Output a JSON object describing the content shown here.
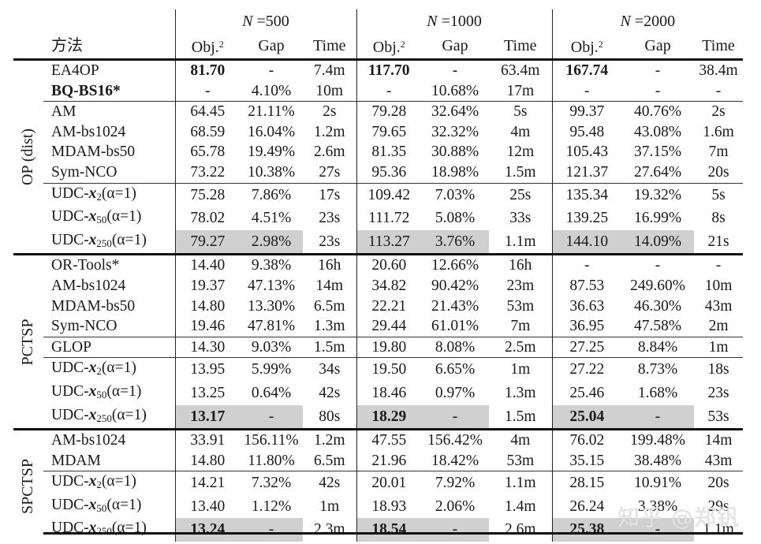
{
  "header": {
    "method_label": "方法",
    "groups": [
      {
        "label_var": "N",
        "label_eq": " =500"
      },
      {
        "label_var": "N",
        "label_eq": " =1000"
      },
      {
        "label_var": "N",
        "label_eq": " =2000"
      }
    ],
    "columns": {
      "obj": "Obj.",
      "obj_sup": "2",
      "gap": "Gap",
      "time": "Time"
    }
  },
  "sections": [
    {
      "category": "OP (dist)",
      "rows": [
        {
          "method": "EA4OP",
          "values": [
            "81.70",
            "-",
            "7.4m",
            "117.70",
            "-",
            "63.4m",
            "167.74",
            "-",
            "38.4m"
          ],
          "bold": [
            0,
            3,
            6
          ]
        },
        {
          "method": "BQ-BS16*",
          "values": [
            "-",
            "4.10%",
            "10m",
            "-",
            "10.68%",
            "17m",
            "-",
            "-",
            "-"
          ]
        },
        {
          "method": "AM",
          "values": [
            "64.45",
            "21.11%",
            "2s",
            "79.28",
            "32.64%",
            "5s",
            "99.37",
            "40.76%",
            "2s"
          ]
        },
        {
          "method": "AM-bs1024",
          "values": [
            "68.59",
            "16.04%",
            "1.2m",
            "79.65",
            "32.32%",
            "4m",
            "95.48",
            "43.08%",
            "1.6m"
          ]
        },
        {
          "method": "MDAM-bs50",
          "values": [
            "65.78",
            "19.49%",
            "2.6m",
            "81.35",
            "30.88%",
            "12m",
            "105.43",
            "37.15%",
            "7m"
          ]
        },
        {
          "method": "Sym-NCO",
          "values": [
            "73.22",
            "10.38%",
            "27s",
            "95.36",
            "18.98%",
            "1.5m",
            "121.37",
            "27.64%",
            "20s"
          ]
        },
        {
          "method_prefix": "UDC-",
          "method_var": "x",
          "method_sub": "2",
          "method_suffix": "(α=1)",
          "values": [
            "75.28",
            "7.86%",
            "17s",
            "109.42",
            "7.03%",
            "25s",
            "135.34",
            "19.32%",
            "5s"
          ]
        },
        {
          "method_prefix": "UDC-",
          "method_var": "x",
          "method_sub": "50",
          "method_suffix": "(α=1)",
          "values": [
            "78.02",
            "4.51%",
            "23s",
            "111.72",
            "5.08%",
            "33s",
            "139.25",
            "16.99%",
            "8s"
          ]
        },
        {
          "method_prefix": "UDC-",
          "method_var": "x",
          "method_sub": "250",
          "method_suffix": "(α=1)",
          "values": [
            "79.27",
            "2.98%",
            "23s",
            "113.27",
            "3.76%",
            "1.1m",
            "144.10",
            "14.09%",
            "21s"
          ]
        }
      ]
    },
    {
      "category": "PCTSP",
      "rows": [
        {
          "method": "OR-Tools*",
          "values": [
            "14.40",
            "9.38%",
            "16h",
            "20.60",
            "12.66%",
            "16h",
            "-",
            "-",
            "-"
          ]
        },
        {
          "method": "AM-bs1024",
          "values": [
            "19.37",
            "47.13%",
            "14m",
            "34.82",
            "90.42%",
            "23m",
            "87.53",
            "249.60%",
            "10m"
          ]
        },
        {
          "method": "MDAM-bs50",
          "values": [
            "14.80",
            "13.30%",
            "6.5m",
            "22.21",
            "21.43%",
            "53m",
            "36.63",
            "46.30%",
            "43m"
          ]
        },
        {
          "method": "Sym-NCO",
          "values": [
            "19.46",
            "47.81%",
            "1.3m",
            "29.44",
            "61.01%",
            "7m",
            "36.95",
            "47.58%",
            "2m"
          ]
        },
        {
          "method": "GLOP",
          "values": [
            "14.30",
            "9.03%",
            "1.5m",
            "19.80",
            "8.08%",
            "2.5m",
            "27.25",
            "8.84%",
            "1m"
          ]
        },
        {
          "method_prefix": "UDC-",
          "method_var": "x",
          "method_sub": "2",
          "method_suffix": "(α=1)",
          "values": [
            "13.95",
            "5.99%",
            "34s",
            "19.50",
            "6.65%",
            "1m",
            "27.22",
            "8.73%",
            "18s"
          ]
        },
        {
          "method_prefix": "UDC-",
          "method_var": "x",
          "method_sub": "50",
          "method_suffix": "(α=1)",
          "values": [
            "13.25",
            "0.64%",
            "42s",
            "18.46",
            "0.97%",
            "1.3m",
            "25.46",
            "1.68%",
            "23s"
          ]
        },
        {
          "method_prefix": "UDC-",
          "method_var": "x",
          "method_sub": "250",
          "method_suffix": "(α=1)",
          "values": [
            "13.17",
            "-",
            "80s",
            "18.29",
            "-",
            "1.5m",
            "25.04",
            "-",
            "53s"
          ]
        }
      ]
    },
    {
      "category": "SPCTSP",
      "rows": [
        {
          "method": "AM-bs1024",
          "values": [
            "33.91",
            "156.11%",
            "1.2m",
            "47.55",
            "156.42%",
            "4m",
            "76.02",
            "199.48%",
            "14m"
          ]
        },
        {
          "method": "MDAM",
          "values": [
            "14.80",
            "11.80%",
            "6.5m",
            "21.96",
            "18.42%",
            "53m",
            "35.15",
            "38.48%",
            "43m"
          ]
        },
        {
          "method_prefix": "UDC-",
          "method_var": "x",
          "method_sub": "2",
          "method_suffix": "(α=1)",
          "values": [
            "14.21",
            "7.32%",
            "42s",
            "20.01",
            "7.92%",
            "1.1m",
            "28.15",
            "10.91%",
            "20s"
          ]
        },
        {
          "method_prefix": "UDC-",
          "method_var": "x",
          "method_sub": "50",
          "method_suffix": "(α=1)",
          "values": [
            "13.40",
            "1.12%",
            "1m",
            "18.93",
            "2.06%",
            "1.4m",
            "26.24",
            "3.38%",
            "29s"
          ]
        },
        {
          "method_prefix": "UDC-",
          "method_var": "x",
          "method_sub": "250",
          "method_suffix": "(α=1)",
          "values": [
            "13.24",
            "-",
            "2.3m",
            "18.54",
            "-",
            "2.6m",
            "25.38",
            "-",
            "1.1m"
          ]
        }
      ]
    }
  ],
  "watermark": "知乎 @郑钒",
  "colors": {
    "highlight": "#d0d0d0",
    "rule": "#111111",
    "text": "#1a1a1a"
  }
}
